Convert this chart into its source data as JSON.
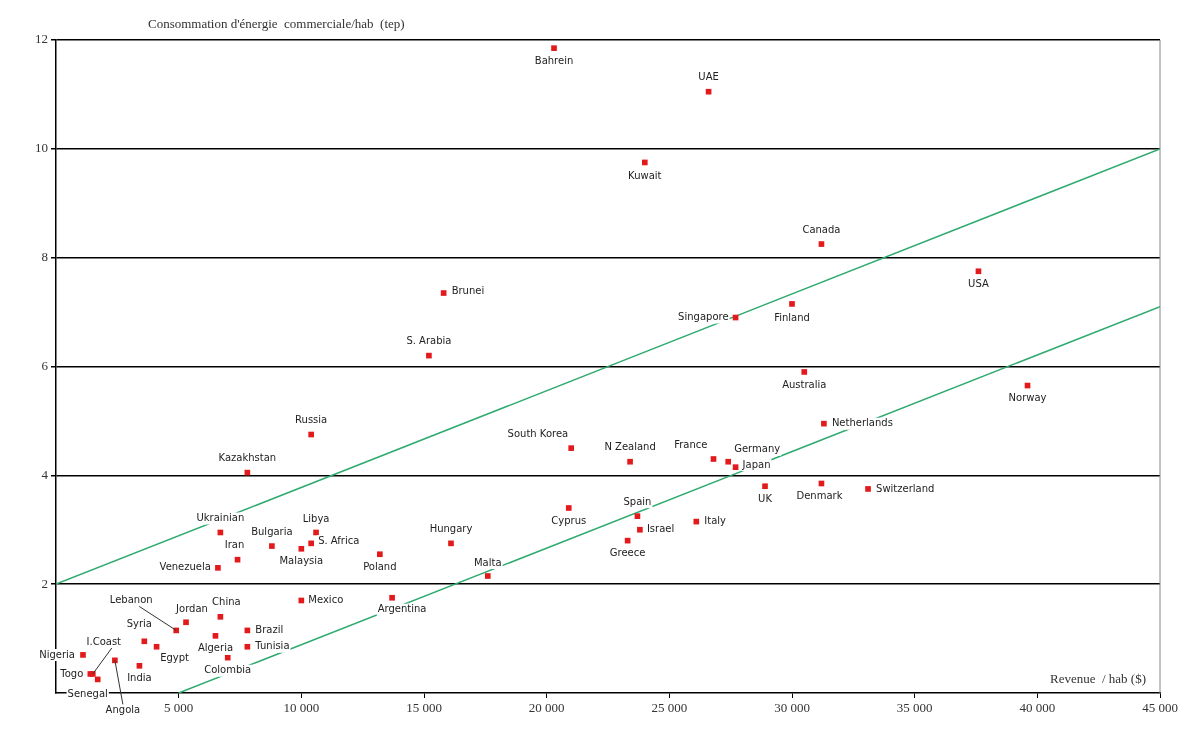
{
  "chart_data": {
    "type": "scatter",
    "xlabel": "Revenue  / hab ($)",
    "ylabel": "Consommation d'énergie  commerciale/hab  (tep)",
    "xlim": [
      0,
      45000
    ],
    "ylim": [
      0,
      12
    ],
    "xticks": [
      {
        "value": 5000,
        "label": "5 000"
      },
      {
        "value": 10000,
        "label": "10 000"
      },
      {
        "value": 15000,
        "label": "15 000"
      },
      {
        "value": 20000,
        "label": "20 000"
      },
      {
        "value": 25000,
        "label": "25 000"
      },
      {
        "value": 30000,
        "label": "30 000"
      },
      {
        "value": 35000,
        "label": "35 000"
      },
      {
        "value": 40000,
        "label": "40 000"
      },
      {
        "value": 45000,
        "label": "45 000"
      }
    ],
    "yticks": [
      2,
      4,
      6,
      8,
      10,
      12
    ],
    "grid": "y",
    "legend": false,
    "series": [
      {
        "marker": "square",
        "color": "#e31a1c",
        "x": [
          20300,
          26600,
          24000,
          31200,
          37600,
          15800,
          30000,
          27700,
          15200,
          30500,
          39600,
          31300,
          10400,
          21000,
          23400,
          26800,
          27400,
          27700,
          7800,
          28900,
          31200,
          33100,
          20900,
          23700,
          26100,
          23800,
          23300,
          6700,
          10600,
          10400,
          8800,
          16100,
          10000,
          13200,
          7400,
          6600,
          17600,
          10000,
          13700,
          6700,
          5300,
          4900,
          7800,
          6500,
          3600,
          7800,
          4100,
          7000,
          3400,
          1100,
          2400,
          1400,
          1700,
          1500
        ],
        "values": [
          11.85,
          11.05,
          9.75,
          8.25,
          7.75,
          7.35,
          7.15,
          6.9,
          6.2,
          5.9,
          5.65,
          4.95,
          4.75,
          4.5,
          4.25,
          4.3,
          4.25,
          4.15,
          4.05,
          3.8,
          3.85,
          3.75,
          3.4,
          3.25,
          3.15,
          3.0,
          2.8,
          2.95,
          2.95,
          2.75,
          2.7,
          2.75,
          2.65,
          2.55,
          2.45,
          2.3,
          2.15,
          1.7,
          1.75,
          1.4,
          1.3,
          1.15,
          1.15,
          1.05,
          0.95,
          0.85,
          0.85,
          0.65,
          0.5,
          0.7,
          0.6,
          0.35,
          0.25,
          0.35
        ],
        "value_labels": [
          "Bahrein",
          "UAE",
          "Kuwait",
          "Canada",
          "USA",
          "Brunei",
          "Finland",
          "Singapore",
          "S. Arabia",
          "Australia",
          "Norway",
          "Netherlands",
          "Russia",
          "South Korea",
          "N Zealand",
          "France",
          "Germany",
          "Japan",
          "Kazakhstan",
          "UK",
          "Denmark",
          "Switzerland",
          "Cyprus",
          "Spain",
          "Italy",
          "Israel",
          "Greece",
          "Ukrainian",
          "Libya",
          "S. Africa",
          "Bulgaria",
          "Hungary",
          "Malaysia",
          "Poland",
          "Iran",
          "Venezuela",
          "Malta",
          "Mexico",
          "Argentina",
          "China",
          "Jordan",
          "Lebanon",
          "Brazil",
          "Algeria",
          "Syria",
          "Tunisia",
          "Egypt",
          "Colombia",
          "India",
          "Nigeria",
          "Angola",
          "Togo",
          "Senegal",
          "I.Coast"
        ]
      },
      {
        "type": "line",
        "color": "#2eaa6e",
        "x": [
          0,
          45000
        ],
        "values": [
          2,
          10
        ]
      },
      {
        "type": "line",
        "color": "#2eaa6e",
        "x": [
          5000,
          45000
        ],
        "values": [
          0,
          7.1
        ]
      }
    ]
  }
}
